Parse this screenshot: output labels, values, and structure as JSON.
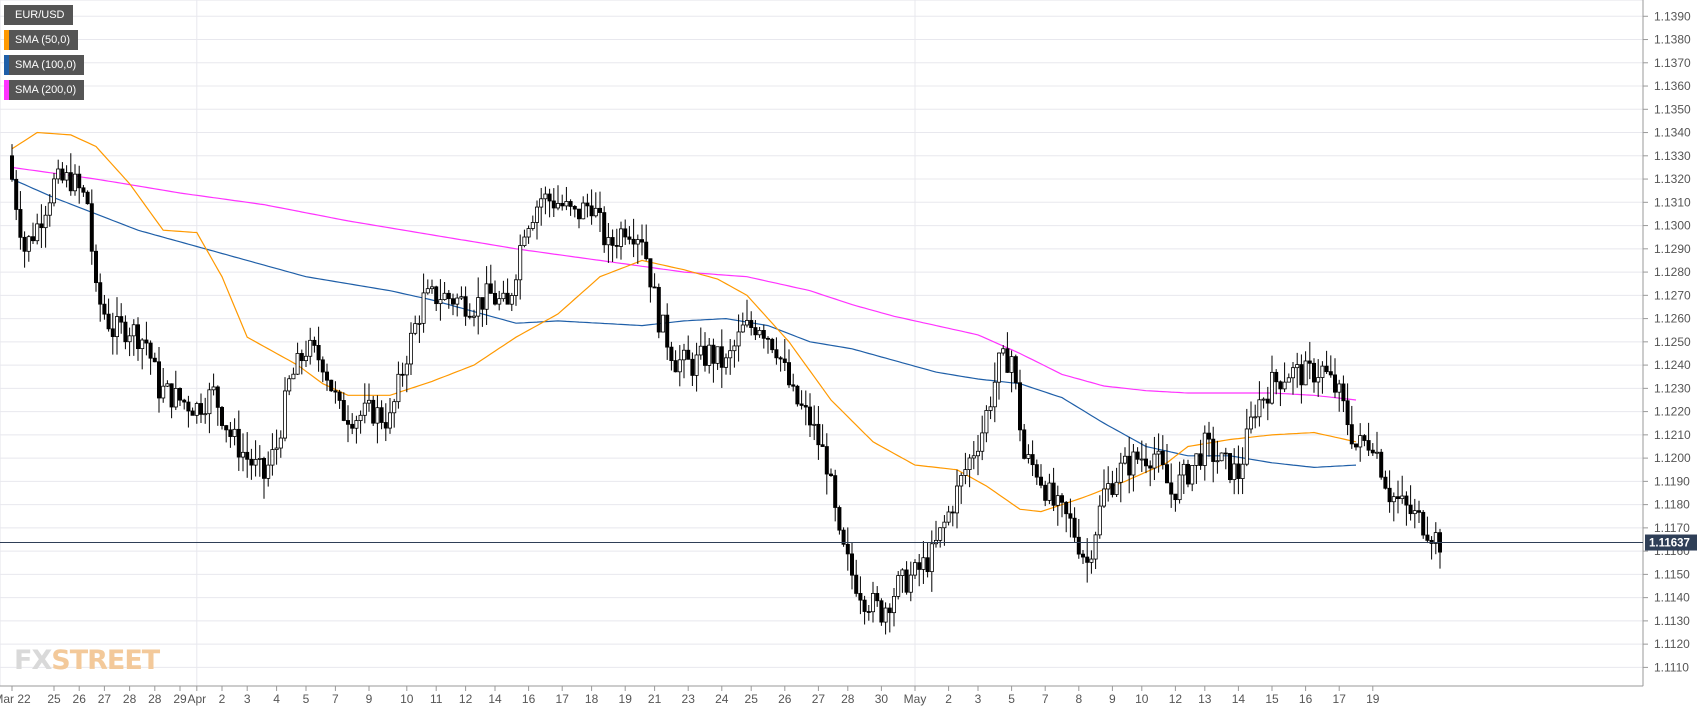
{
  "legend": {
    "symbol": "EUR/USD",
    "sma50": "SMA (50,0)",
    "sma100": "SMA (100,0)",
    "sma200": "SMA (200,0)"
  },
  "logo": {
    "fx": "FX",
    "street": "STREET"
  },
  "colors": {
    "sma50": "#ff9900",
    "sma100": "#1f5fa8",
    "sma200": "#ff33ff",
    "price_line": "#2f3f57",
    "price_label_bg": "#2f3f57",
    "bull_candle": "#ffffff",
    "bear_candle": "#000000",
    "grid": "#e8e8ee"
  },
  "chart_data": {
    "type": "candlestick",
    "symbol": "EUR/USD",
    "ylim": [
      1.1102,
      1.1397
    ],
    "yticks": [
      "1.1110",
      "1.1120",
      "1.1130",
      "1.1140",
      "1.1150",
      "1.1160",
      "1.1170",
      "1.1180",
      "1.1190",
      "1.1200",
      "1.1210",
      "1.1220",
      "1.1230",
      "1.1240",
      "1.1250",
      "1.1260",
      "1.1270",
      "1.1280",
      "1.1290",
      "1.1300",
      "1.1310",
      "1.1320",
      "1.1330",
      "1.1340",
      "1.1350",
      "1.1360",
      "1.1370",
      "1.1380",
      "1.1390"
    ],
    "xticks": [
      {
        "label": "Mar 22",
        "i": 0
      },
      {
        "label": "25",
        "i": 10
      },
      {
        "label": "26",
        "i": 16
      },
      {
        "label": "27",
        "i": 22
      },
      {
        "label": "28",
        "i": 28
      },
      {
        "label": "28",
        "i": 34
      },
      {
        "label": "29",
        "i": 40
      },
      {
        "label": "Apr",
        "i": 44
      },
      {
        "label": "2",
        "i": 50
      },
      {
        "label": "3",
        "i": 56
      },
      {
        "label": "4",
        "i": 63
      },
      {
        "label": "5",
        "i": 70
      },
      {
        "label": "7",
        "i": 77
      },
      {
        "label": "9",
        "i": 85
      },
      {
        "label": "10",
        "i": 94
      },
      {
        "label": "11",
        "i": 101
      },
      {
        "label": "12",
        "i": 108
      },
      {
        "label": "14",
        "i": 115
      },
      {
        "label": "16",
        "i": 123
      },
      {
        "label": "17",
        "i": 131
      },
      {
        "label": "18",
        "i": 138
      },
      {
        "label": "19",
        "i": 146
      },
      {
        "label": "21",
        "i": 153
      },
      {
        "label": "23",
        "i": 161
      },
      {
        "label": "24",
        "i": 169
      },
      {
        "label": "25",
        "i": 176
      },
      {
        "label": "26",
        "i": 184
      },
      {
        "label": "27",
        "i": 192
      },
      {
        "label": "28",
        "i": 199
      },
      {
        "label": "30",
        "i": 207
      },
      {
        "label": "May",
        "i": 215
      },
      {
        "label": "2",
        "i": 223
      },
      {
        "label": "3",
        "i": 230
      },
      {
        "label": "5",
        "i": 238
      },
      {
        "label": "7",
        "i": 246
      },
      {
        "label": "8",
        "i": 254
      },
      {
        "label": "9",
        "i": 262
      },
      {
        "label": "10",
        "i": 269
      },
      {
        "label": "12",
        "i": 277
      },
      {
        "label": "13",
        "i": 284
      },
      {
        "label": "14",
        "i": 292
      },
      {
        "label": "15",
        "i": 300
      },
      {
        "label": "16",
        "i": 308
      },
      {
        "label": "17",
        "i": 316
      },
      {
        "label": "19",
        "i": 324
      }
    ],
    "vgrid_at": [
      44,
      215
    ],
    "current_price": 1.11637,
    "current_price_label": "1.11637",
    "sma50": [
      [
        0,
        1.1333
      ],
      [
        6,
        1.134
      ],
      [
        14,
        1.1339
      ],
      [
        20,
        1.1334
      ],
      [
        28,
        1.1318
      ],
      [
        36,
        1.1298
      ],
      [
        44,
        1.1297
      ],
      [
        50,
        1.1278
      ],
      [
        56,
        1.1252
      ],
      [
        62,
        1.1246
      ],
      [
        68,
        1.124
      ],
      [
        74,
        1.1232
      ],
      [
        80,
        1.1227
      ],
      [
        90,
        1.1227
      ],
      [
        100,
        1.1233
      ],
      [
        110,
        1.124
      ],
      [
        120,
        1.1252
      ],
      [
        130,
        1.1262
      ],
      [
        140,
        1.1278
      ],
      [
        150,
        1.1285
      ],
      [
        160,
        1.1281
      ],
      [
        168,
        1.1277
      ],
      [
        175,
        1.127
      ],
      [
        185,
        1.125
      ],
      [
        195,
        1.1225
      ],
      [
        205,
        1.1207
      ],
      [
        215,
        1.1197
      ],
      [
        225,
        1.1195
      ],
      [
        232,
        1.1188
      ],
      [
        240,
        1.1178
      ],
      [
        245,
        1.1177
      ],
      [
        255,
        1.1183
      ],
      [
        265,
        1.119
      ],
      [
        275,
        1.1198
      ],
      [
        280,
        1.1205
      ],
      [
        290,
        1.1208
      ],
      [
        300,
        1.121
      ],
      [
        310,
        1.1211
      ],
      [
        320,
        1.1207
      ]
    ],
    "sma100": [
      [
        0,
        1.132
      ],
      [
        10,
        1.1312
      ],
      [
        20,
        1.1305
      ],
      [
        30,
        1.1298
      ],
      [
        40,
        1.1293
      ],
      [
        50,
        1.1288
      ],
      [
        60,
        1.1283
      ],
      [
        70,
        1.1278
      ],
      [
        80,
        1.1275
      ],
      [
        90,
        1.1272
      ],
      [
        100,
        1.1268
      ],
      [
        110,
        1.1263
      ],
      [
        120,
        1.1258
      ],
      [
        130,
        1.1259
      ],
      [
        140,
        1.1258
      ],
      [
        150,
        1.1257
      ],
      [
        160,
        1.1259
      ],
      [
        170,
        1.126
      ],
      [
        180,
        1.1257
      ],
      [
        190,
        1.125
      ],
      [
        200,
        1.1247
      ],
      [
        210,
        1.1242
      ],
      [
        220,
        1.1237
      ],
      [
        230,
        1.1234
      ],
      [
        240,
        1.1232
      ],
      [
        250,
        1.1226
      ],
      [
        260,
        1.1215
      ],
      [
        270,
        1.1205
      ],
      [
        280,
        1.1201
      ],
      [
        290,
        1.1201
      ],
      [
        300,
        1.1198
      ],
      [
        310,
        1.1196
      ],
      [
        320,
        1.1197
      ]
    ],
    "sma200": [
      [
        0,
        1.1325
      ],
      [
        20,
        1.132
      ],
      [
        40,
        1.1314
      ],
      [
        60,
        1.1309
      ],
      [
        80,
        1.1302
      ],
      [
        100,
        1.1296
      ],
      [
        120,
        1.129
      ],
      [
        140,
        1.1285
      ],
      [
        160,
        1.128
      ],
      [
        175,
        1.1278
      ],
      [
        190,
        1.1272
      ],
      [
        200,
        1.1266
      ],
      [
        210,
        1.1261
      ],
      [
        220,
        1.1257
      ],
      [
        230,
        1.1253
      ],
      [
        240,
        1.1245
      ],
      [
        250,
        1.1236
      ],
      [
        260,
        1.1231
      ],
      [
        270,
        1.1229
      ],
      [
        280,
        1.1228
      ],
      [
        290,
        1.1228
      ],
      [
        300,
        1.1228
      ],
      [
        310,
        1.1227
      ],
      [
        320,
        1.1225
      ]
    ],
    "key_closes": [
      [
        0,
        1.132
      ],
      [
        3,
        1.129
      ],
      [
        6,
        1.13
      ],
      [
        10,
        1.1318
      ],
      [
        14,
        1.132
      ],
      [
        18,
        1.131
      ],
      [
        20,
        1.127
      ],
      [
        24,
        1.1255
      ],
      [
        28,
        1.1256
      ],
      [
        32,
        1.125
      ],
      [
        35,
        1.123
      ],
      [
        40,
        1.1225
      ],
      [
        44,
        1.1222
      ],
      [
        48,
        1.1228
      ],
      [
        52,
        1.121
      ],
      [
        56,
        1.12
      ],
      [
        60,
        1.1192
      ],
      [
        63,
        1.1205
      ],
      [
        66,
        1.1232
      ],
      [
        70,
        1.1247
      ],
      [
        74,
        1.1242
      ],
      [
        78,
        1.122
      ],
      [
        82,
        1.1218
      ],
      [
        86,
        1.122
      ],
      [
        90,
        1.1216
      ],
      [
        94,
        1.1245
      ],
      [
        98,
        1.1268
      ],
      [
        102,
        1.127
      ],
      [
        106,
        1.1268
      ],
      [
        110,
        1.1266
      ],
      [
        114,
        1.127
      ],
      [
        118,
        1.1264
      ],
      [
        122,
        1.13
      ],
      [
        126,
        1.1312
      ],
      [
        130,
        1.131
      ],
      [
        134,
        1.1304
      ],
      [
        138,
        1.131
      ],
      [
        142,
        1.129
      ],
      [
        146,
        1.13
      ],
      [
        150,
        1.1296
      ],
      [
        154,
        1.126
      ],
      [
        158,
        1.1242
      ],
      [
        162,
        1.124
      ],
      [
        166,
        1.1245
      ],
      [
        170,
        1.124
      ],
      [
        174,
        1.1255
      ],
      [
        178,
        1.1258
      ],
      [
        182,
        1.1248
      ],
      [
        186,
        1.1226
      ],
      [
        190,
        1.1216
      ],
      [
        194,
        1.1198
      ],
      [
        197,
        1.1164
      ],
      [
        200,
        1.115
      ],
      [
        203,
        1.114
      ],
      [
        207,
        1.1134
      ],
      [
        211,
        1.1145
      ],
      [
        215,
        1.115
      ],
      [
        219,
        1.1158
      ],
      [
        223,
        1.1176
      ],
      [
        227,
        1.1195
      ],
      [
        231,
        1.1212
      ],
      [
        235,
        1.124
      ],
      [
        238,
        1.1244
      ],
      [
        241,
        1.12
      ],
      [
        244,
        1.1195
      ],
      [
        248,
        1.118
      ],
      [
        252,
        1.1172
      ],
      [
        256,
        1.1155
      ],
      [
        260,
        1.1185
      ],
      [
        264,
        1.1195
      ],
      [
        268,
        1.12
      ],
      [
        272,
        1.1202
      ],
      [
        276,
        1.1185
      ],
      [
        280,
        1.1194
      ],
      [
        284,
        1.1205
      ],
      [
        288,
        1.1198
      ],
      [
        292,
        1.1193
      ],
      [
        296,
        1.1222
      ],
      [
        300,
        1.1232
      ],
      [
        304,
        1.1237
      ],
      [
        308,
        1.1236
      ],
      [
        312,
        1.1238
      ],
      [
        316,
        1.1227
      ],
      [
        320,
        1.1205
      ],
      [
        324,
        1.1208
      ],
      [
        328,
        1.1185
      ],
      [
        332,
        1.1178
      ],
      [
        336,
        1.1172
      ],
      [
        340,
        1.1164
      ]
    ]
  }
}
